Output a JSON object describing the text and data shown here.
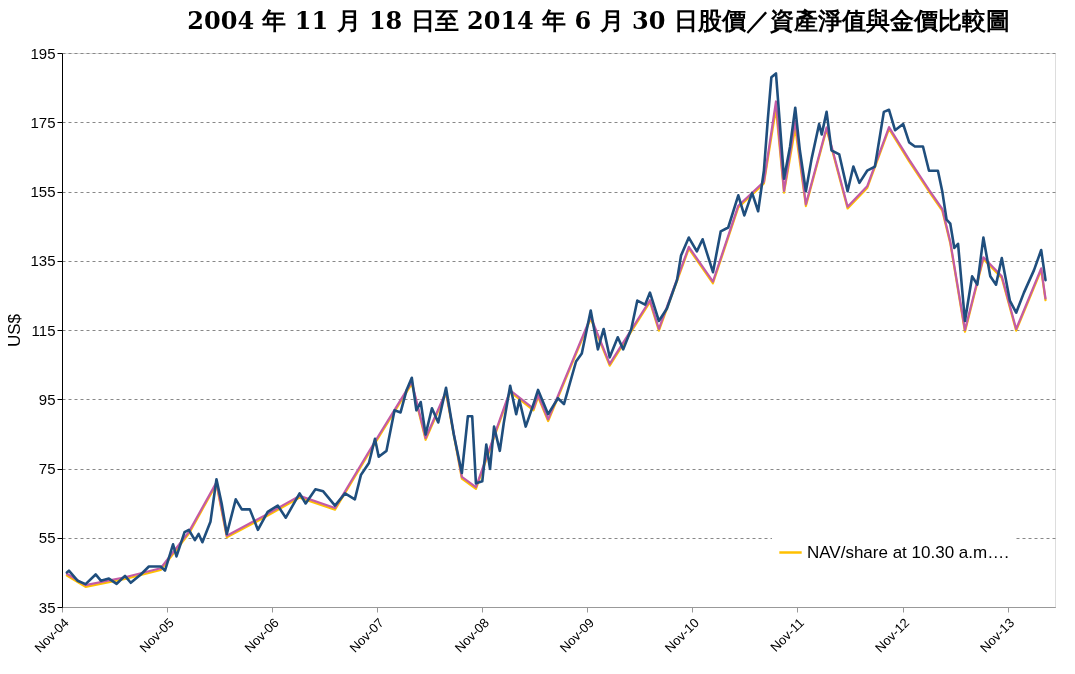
{
  "chart_data": {
    "type": "line",
    "title": "2004 年 11 月 18 日至 2014 年 6 月 30 日股價／資產淨值與金價比較圖",
    "ylabel": "US$",
    "ylim": [
      35,
      195
    ],
    "yticks": [
      35,
      55,
      75,
      95,
      115,
      135,
      155,
      175,
      195
    ],
    "xlim": [
      "2004-11-01",
      "2014-04-15"
    ],
    "xticks": [
      {
        "value": "2004-11-01",
        "label": "Nov-04"
      },
      {
        "value": "2005-11-01",
        "label": "Nov-05"
      },
      {
        "value": "2006-11-01",
        "label": "Nov-06"
      },
      {
        "value": "2007-11-01",
        "label": "Nov-07"
      },
      {
        "value": "2008-11-01",
        "label": "Nov-08"
      },
      {
        "value": "2009-11-01",
        "label": "Nov-09"
      },
      {
        "value": "2010-11-01",
        "label": "Nov-10"
      },
      {
        "value": "2011-11-01",
        "label": "Nov-11"
      },
      {
        "value": "2012-11-01",
        "label": "Nov-12"
      },
      {
        "value": "2013-11-01",
        "label": "Nov-13"
      }
    ],
    "grid": "y",
    "legend": "bottom right",
    "line_style": "solid",
    "marker": "none",
    "series": [
      {
        "color": "#1f4e7d",
        "x": [
          "2004-11-18",
          "2004-11-25",
          "2004-12-25",
          "2005-01-22",
          "2005-02-26",
          "2005-03-16",
          "2005-04-13",
          "2005-05-10",
          "2005-06-08",
          "2005-06-28",
          "2005-08-02",
          "2005-08-30",
          "2005-10-10",
          "2005-10-25",
          "2005-11-22",
          "2005-12-04",
          "2006-01-01",
          "2006-01-16",
          "2006-02-06",
          "2006-02-19",
          "2006-03-04",
          "2006-04-01",
          "2006-04-22",
          "2006-05-10",
          "2006-05-28",
          "2006-06-28",
          "2006-07-19",
          "2006-08-16",
          "2006-09-13",
          "2006-10-17",
          "2006-11-21",
          "2006-12-19",
          "2007-02-05",
          "2007-02-26",
          "2007-04-01",
          "2007-04-28",
          "2007-06-08",
          "2007-07-13",
          "2007-08-16",
          "2007-09-06",
          "2007-10-04",
          "2007-10-25",
          "2007-11-07",
          "2007-12-04",
          "2008-01-01",
          "2008-01-22",
          "2008-02-12",
          "2008-03-01",
          "2008-03-17",
          "2008-04-01",
          "2008-04-18",
          "2008-05-10",
          "2008-06-01",
          "2008-06-28",
          "2008-07-25",
          "2008-08-22",
          "2008-09-12",
          "2008-09-27",
          "2008-10-10",
          "2008-11-01",
          "2008-11-15",
          "2008-11-28",
          "2008-12-12",
          "2009-01-01",
          "2009-01-15",
          "2009-02-06",
          "2009-02-27",
          "2009-03-10",
          "2009-04-01",
          "2009-04-28",
          "2009-05-14",
          "2009-06-18",
          "2009-07-22",
          "2009-08-12",
          "2009-09-23",
          "2009-10-13",
          "2009-11-13",
          "2009-12-08",
          "2009-12-28",
          "2010-01-18",
          "2010-02-15",
          "2010-03-06",
          "2010-04-03",
          "2010-04-24",
          "2010-05-21",
          "2010-06-07",
          "2010-07-08",
          "2010-08-05",
          "2010-09-09",
          "2010-09-23",
          "2010-10-20",
          "2010-11-17",
          "2010-12-07",
          "2011-01-12",
          "2011-02-08",
          "2011-03-06",
          "2011-04-10",
          "2011-05-01",
          "2011-05-28",
          "2011-06-18",
          "2011-07-08",
          "2011-07-22",
          "2011-08-03",
          "2011-08-19",
          "2011-08-31",
          "2011-09-16",
          "2011-10-07",
          "2011-10-25",
          "2011-11-10",
          "2011-12-01",
          "2011-12-21",
          "2012-01-16",
          "2012-01-25",
          "2012-02-11",
          "2012-02-28",
          "2012-03-26",
          "2012-04-24",
          "2012-05-14",
          "2012-06-04",
          "2012-07-01",
          "2012-07-28",
          "2012-08-28",
          "2012-09-15",
          "2012-10-06",
          "2012-11-03",
          "2012-11-24",
          "2012-12-14",
          "2013-01-11",
          "2013-02-01",
          "2013-03-04",
          "2013-03-19",
          "2013-04-03",
          "2013-04-16",
          "2013-04-30",
          "2013-05-13",
          "2013-06-06",
          "2013-07-01",
          "2013-07-19",
          "2013-08-09",
          "2013-09-02",
          "2013-09-22",
          "2013-10-12",
          "2013-11-09",
          "2013-12-01",
          "2013-12-28",
          "2014-02-01",
          "2014-02-26",
          "2014-03-13"
        ],
        "values": [
          45.0,
          45.5,
          42.6,
          41.6,
          44.4,
          42.6,
          43.2,
          41.7,
          44.0,
          42.0,
          44.4,
          46.7,
          46.7,
          45.5,
          53.1,
          49.6,
          56.6,
          57.3,
          54.3,
          56.1,
          53.7,
          59.6,
          71.9,
          64.9,
          56.1,
          66.1,
          63.2,
          63.2,
          57.3,
          62.5,
          64.3,
          60.8,
          67.8,
          64.9,
          69.0,
          68.4,
          64.3,
          67.8,
          66.1,
          73.1,
          76.6,
          83.6,
          78.4,
          80.1,
          91.8,
          91.2,
          97.7,
          101.2,
          91.8,
          94.2,
          84.8,
          92.4,
          88.3,
          98.3,
          84.8,
          73.7,
          90.1,
          90.1,
          70.7,
          71.3,
          81.9,
          74.9,
          87.1,
          80.1,
          88.3,
          98.9,
          90.7,
          94.8,
          87.1,
          93.6,
          97.7,
          90.7,
          95.3,
          93.6,
          105.9,
          108.2,
          120.6,
          109.4,
          115.3,
          107.1,
          112.9,
          109.4,
          115.3,
          123.5,
          122.3,
          125.8,
          117.6,
          121.2,
          129.4,
          136.5,
          141.7,
          137.7,
          141.2,
          131.7,
          143.5,
          144.6,
          153.9,
          148.1,
          154.6,
          149.3,
          161.0,
          176.2,
          188.0,
          189.1,
          176.2,
          158.7,
          168.0,
          179.2,
          166.9,
          155.1,
          164.5,
          174.5,
          171.5,
          178.0,
          166.9,
          165.7,
          155.1,
          162.2,
          157.5,
          161.0,
          162.2,
          178.0,
          178.6,
          172.7,
          174.5,
          169.2,
          168.0,
          168.0,
          161.0,
          161.0,
          155.1,
          146.9,
          145.7,
          138.7,
          139.9,
          117.6,
          130.5,
          128.1,
          141.7,
          130.5,
          128.1,
          135.8,
          123.5,
          120.0,
          125.8,
          132.3,
          138.1,
          129.4
        ]
      },
      {
        "color": "#c35ba5",
        "x": [
          "2004-11-18",
          "2005-01-22",
          "2005-06-08",
          "2005-10-10",
          "2006-01-16",
          "2006-04-22",
          "2006-05-28",
          "2006-10-17",
          "2007-02-05",
          "2007-06-08",
          "2007-10-25",
          "2008-03-01",
          "2008-04-18",
          "2008-06-28",
          "2008-08-22",
          "2008-10-10",
          "2009-02-06",
          "2009-04-28",
          "2009-05-14",
          "2009-06-18",
          "2009-11-13",
          "2010-01-18",
          "2010-06-07",
          "2010-07-08",
          "2010-10-20",
          "2011-01-12",
          "2011-04-10",
          "2011-07-08",
          "2011-08-19",
          "2011-09-16",
          "2011-10-25",
          "2011-12-01",
          "2012-02-11",
          "2012-04-24",
          "2012-07-01",
          "2012-09-15",
          "2012-11-24",
          "2013-02-01",
          "2013-03-19",
          "2013-04-16",
          "2013-06-06",
          "2013-08-09",
          "2013-10-12",
          "2013-12-01",
          "2014-02-26",
          "2014-03-13"
        ],
        "values": [
          44.6,
          41.3,
          43.6,
          46.2,
          56.7,
          71.0,
          55.6,
          61.9,
          67.1,
          63.6,
          82.8,
          100.0,
          83.8,
          97.2,
          72.6,
          69.6,
          97.6,
          92.3,
          96.2,
          89.2,
          118.8,
          105.2,
          123.6,
          115.3,
          139.0,
          129.0,
          150.9,
          157.8,
          181.0,
          155.2,
          175.4,
          151.3,
          173.5,
          150.6,
          156.5,
          173.6,
          164.2,
          155.5,
          150.0,
          140.5,
          115.0,
          136.0,
          130.5,
          115.3,
          132.8,
          124.1
        ]
      },
      {
        "name": "NAV/share at 10.30 a.m….",
        "color": "#ffc000",
        "x": [
          "2004-11-18",
          "2005-01-22",
          "2005-06-08",
          "2005-10-10",
          "2006-01-16",
          "2006-04-22",
          "2006-05-28",
          "2006-10-17",
          "2007-02-05",
          "2007-06-08",
          "2007-10-25",
          "2008-03-01",
          "2008-04-18",
          "2008-06-28",
          "2008-08-22",
          "2008-10-10",
          "2009-02-06",
          "2009-04-28",
          "2009-05-14",
          "2009-06-18",
          "2009-11-13",
          "2010-01-18",
          "2010-06-07",
          "2010-07-08",
          "2010-10-20",
          "2011-01-12",
          "2011-04-10",
          "2011-07-08",
          "2011-08-19",
          "2011-09-16",
          "2011-10-25",
          "2011-12-01",
          "2012-02-11",
          "2012-04-24",
          "2012-07-01",
          "2012-09-15",
          "2012-11-24",
          "2013-02-01",
          "2013-03-19",
          "2013-04-16",
          "2013-06-06",
          "2013-08-09",
          "2013-10-12",
          "2013-12-01",
          "2014-02-26",
          "2014-03-13"
        ],
        "values": [
          44.1,
          40.8,
          43.1,
          45.7,
          56.2,
          70.5,
          55.1,
          61.4,
          66.6,
          63.1,
          82.3,
          99.5,
          83.3,
          96.7,
          72.1,
          69.1,
          97.1,
          91.8,
          95.7,
          88.7,
          118.3,
          104.7,
          123.1,
          114.8,
          138.5,
          128.5,
          150.4,
          157.3,
          179.0,
          154.7,
          173.4,
          150.8,
          173.0,
          150.1,
          156.0,
          173.1,
          163.7,
          155.0,
          149.5,
          140.0,
          114.5,
          135.5,
          130.0,
          114.8,
          132.3,
          123.6
        ]
      }
    ]
  }
}
